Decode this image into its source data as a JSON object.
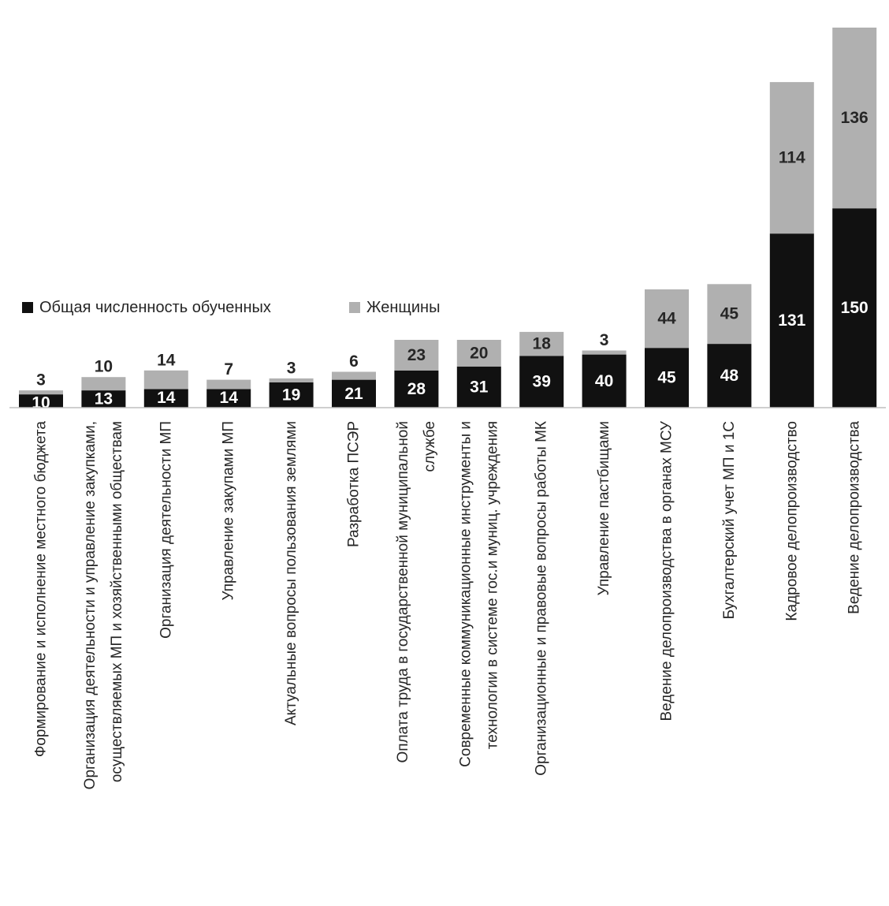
{
  "chart_data": {
    "type": "bar",
    "stacked": true,
    "categories": [
      [
        "Формирование и исполнение местного бюджета"
      ],
      [
        "Организация деятельности и управление закупками,",
        "осуществляемых МП и хозяйственными обществам"
      ],
      [
        "Организация деятельности  МП"
      ],
      [
        "Управление закупами МП"
      ],
      [
        "Актуальные вопросы пользования землями"
      ],
      [
        "Разработка ПСЭР"
      ],
      [
        "Оплата труда в государственной муниципальной",
        "службе"
      ],
      [
        "Современные коммуникационные инструменты и",
        "технологии в системе гос.и муниц. учреждения"
      ],
      [
        "Организационные и правовые вопросы работы МК"
      ],
      [
        "Управление пастбищами"
      ],
      [
        "Ведение делопроизводства в органах МСУ"
      ],
      [
        "Бухгалтерский учет МП и 1С"
      ],
      [
        "Кадровое делопроизводство"
      ],
      [
        "Ведение делопроизводства"
      ]
    ],
    "series": [
      {
        "name": "Общая численность обученных",
        "color": "#111111",
        "label_color": "#ffffff",
        "values": [
          10,
          13,
          14,
          14,
          19,
          21,
          28,
          31,
          39,
          40,
          45,
          48,
          131,
          150
        ]
      },
      {
        "name": "Женщины",
        "color": "#b0b0b0",
        "label_color": "#262626",
        "values": [
          3,
          10,
          14,
          7,
          3,
          6,
          23,
          20,
          18,
          3,
          44,
          45,
          114,
          136
        ]
      }
    ],
    "legend": {
      "position": "left-middle"
    },
    "grid": false,
    "xlabel": "",
    "ylabel": "",
    "ylim": [
      0,
      286
    ]
  }
}
